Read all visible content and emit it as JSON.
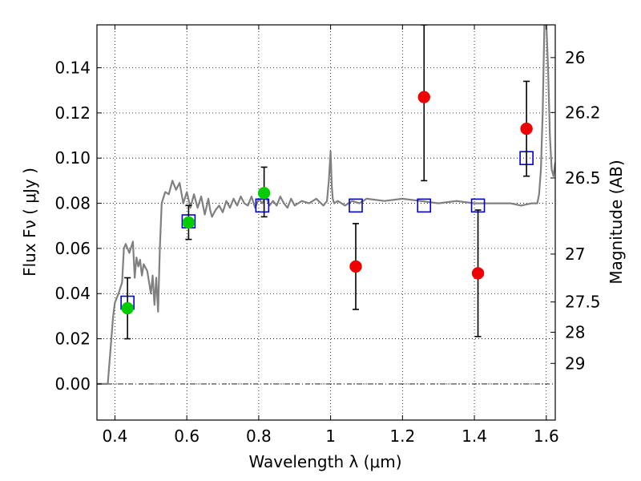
{
  "chart_data": {
    "type": "scatter",
    "xlabel": "Wavelength  λ (μm)",
    "ylabel": "Flux  Fν  ( μJy )",
    "y2label": "Magnitude (AB)",
    "xlim": [
      0.35,
      1.625
    ],
    "ylim": [
      -0.016,
      0.159
    ],
    "grid": true,
    "xticks": [
      0.4,
      0.6,
      0.8,
      1.0,
      1.2,
      1.4,
      1.6
    ],
    "xtick_labels": [
      "0.4",
      "0.6",
      "0.8",
      "1",
      "1.2",
      "1.4",
      "1.6"
    ],
    "yticks": [
      0.0,
      0.02,
      0.04,
      0.06,
      0.08,
      0.1,
      0.12,
      0.14
    ],
    "ytick_labels": [
      "0.00",
      "0.02",
      "0.04",
      "0.06",
      "0.08",
      "0.10",
      "0.12",
      "0.14"
    ],
    "y2ticks": [
      {
        "label": "26",
        "flux": 0.1445
      },
      {
        "label": "26.2",
        "flux": 0.1202
      },
      {
        "label": "26.5",
        "flux": 0.0912
      },
      {
        "label": "27",
        "flux": 0.0575
      },
      {
        "label": "27.5",
        "flux": 0.0363
      },
      {
        "label": "28",
        "flux": 0.0229
      },
      {
        "label": "29",
        "flux": 0.0091
      }
    ],
    "series": [
      {
        "marker": "line",
        "color": "#808080",
        "x": [
          0.35,
          0.38,
          0.395,
          0.4,
          0.41,
          0.42,
          0.425,
          0.43,
          0.44,
          0.45,
          0.455,
          0.46,
          0.465,
          0.47,
          0.475,
          0.48,
          0.49,
          0.5,
          0.505,
          0.51,
          0.515,
          0.52,
          0.525,
          0.53,
          0.54,
          0.55,
          0.56,
          0.57,
          0.58,
          0.59,
          0.6,
          0.61,
          0.62,
          0.63,
          0.64,
          0.65,
          0.66,
          0.665,
          0.67,
          0.68,
          0.69,
          0.7,
          0.71,
          0.72,
          0.73,
          0.74,
          0.75,
          0.76,
          0.77,
          0.78,
          0.79,
          0.8,
          0.81,
          0.82,
          0.83,
          0.84,
          0.85,
          0.86,
          0.87,
          0.88,
          0.89,
          0.9,
          0.92,
          0.94,
          0.96,
          0.98,
          0.99,
          0.995,
          1.0,
          1.003,
          1.006,
          1.01,
          1.02,
          1.04,
          1.06,
          1.08,
          1.1,
          1.15,
          1.2,
          1.25,
          1.3,
          1.35,
          1.4,
          1.45,
          1.5,
          1.53,
          1.56,
          1.575,
          1.58,
          1.585,
          1.59,
          1.595,
          1.6,
          1.605,
          1.61,
          1.615,
          1.62,
          1.625
        ],
        "values": [
          0.0,
          0.0,
          0.03,
          0.036,
          0.04,
          0.045,
          0.06,
          0.062,
          0.058,
          0.063,
          0.047,
          0.056,
          0.052,
          0.055,
          0.048,
          0.053,
          0.05,
          0.04,
          0.048,
          0.035,
          0.047,
          0.032,
          0.06,
          0.08,
          0.085,
          0.084,
          0.09,
          0.086,
          0.089,
          0.08,
          0.085,
          0.078,
          0.084,
          0.078,
          0.083,
          0.075,
          0.082,
          0.077,
          0.074,
          0.077,
          0.079,
          0.076,
          0.081,
          0.078,
          0.082,
          0.079,
          0.083,
          0.08,
          0.079,
          0.083,
          0.078,
          0.082,
          0.08,
          0.083,
          0.079,
          0.081,
          0.079,
          0.083,
          0.08,
          0.078,
          0.082,
          0.079,
          0.081,
          0.08,
          0.082,
          0.079,
          0.081,
          0.09,
          0.103,
          0.088,
          0.082,
          0.08,
          0.081,
          0.079,
          0.081,
          0.08,
          0.082,
          0.081,
          0.082,
          0.081,
          0.08,
          0.081,
          0.08,
          0.08,
          0.08,
          0.079,
          0.08,
          0.08,
          0.084,
          0.095,
          0.12,
          0.16,
          0.16,
          0.14,
          0.11,
          0.095,
          0.092,
          0.098
        ]
      },
      {
        "marker": "open-square",
        "color": "#0000cc",
        "x": [
          0.435,
          0.605,
          0.81,
          1.07,
          1.26,
          1.41,
          1.545
        ],
        "values": [
          0.036,
          0.072,
          0.079,
          0.079,
          0.079,
          0.079,
          0.1
        ]
      },
      {
        "marker": "filled-circle",
        "color": "#00cc00",
        "x": [
          0.435,
          0.605,
          0.815
        ],
        "values": [
          0.0335,
          0.0715,
          0.0845
        ],
        "yerr_low": [
          0.02,
          0.064,
          0.074
        ],
        "yerr_high": [
          0.047,
          0.079,
          0.096
        ]
      },
      {
        "marker": "filled-circle",
        "color": "#ee0000",
        "x": [
          1.07,
          1.26,
          1.41,
          1.545
        ],
        "values": [
          0.052,
          0.127,
          0.049,
          0.113
        ],
        "yerr_low": [
          0.033,
          0.09,
          0.021,
          0.092
        ],
        "yerr_high": [
          0.071,
          0.159,
          0.077,
          0.134
        ]
      }
    ]
  }
}
